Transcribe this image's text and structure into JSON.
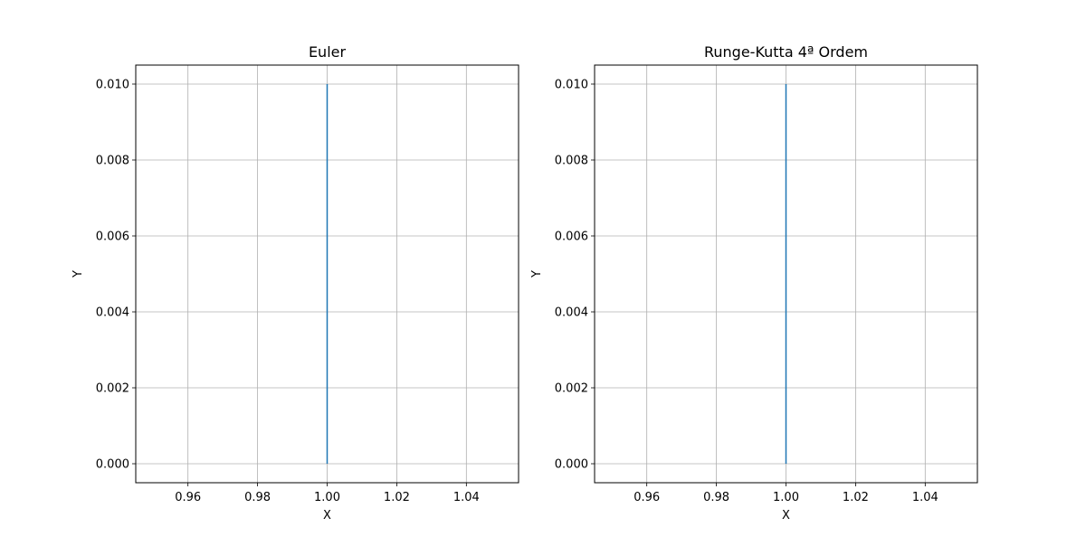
{
  "chart_data": [
    {
      "type": "line",
      "title": "Euler",
      "xlabel": "X",
      "ylabel": "Y",
      "xlim": [
        0.945,
        1.055
      ],
      "ylim": [
        -0.0005,
        0.0105
      ],
      "xticks": [
        0.96,
        0.98,
        1.0,
        1.02,
        1.04
      ],
      "xtick_labels": [
        "0.96",
        "0.98",
        "1.00",
        "1.02",
        "1.04"
      ],
      "yticks": [
        0.0,
        0.002,
        0.004,
        0.006,
        0.008,
        0.01
      ],
      "ytick_labels": [
        "0.000",
        "0.002",
        "0.004",
        "0.006",
        "0.008",
        "0.010"
      ],
      "grid": true,
      "series": [
        {
          "color": "#1f77b4",
          "x": [
            1.0,
            1.0
          ],
          "y": [
            0.0,
            0.01
          ]
        }
      ]
    },
    {
      "type": "line",
      "title": "Runge-Kutta 4ª Ordem",
      "xlabel": "X",
      "ylabel": "Y",
      "xlim": [
        0.945,
        1.055
      ],
      "ylim": [
        -0.0005,
        0.0105
      ],
      "xticks": [
        0.96,
        0.98,
        1.0,
        1.02,
        1.04
      ],
      "xtick_labels": [
        "0.96",
        "0.98",
        "1.00",
        "1.02",
        "1.04"
      ],
      "yticks": [
        0.0,
        0.002,
        0.004,
        0.006,
        0.008,
        0.01
      ],
      "ytick_labels": [
        "0.000",
        "0.002",
        "0.004",
        "0.006",
        "0.008",
        "0.010"
      ],
      "grid": true,
      "series": [
        {
          "color": "#1f77b4",
          "x": [
            1.0,
            1.0
          ],
          "y": [
            0.0,
            0.01
          ]
        }
      ]
    }
  ]
}
